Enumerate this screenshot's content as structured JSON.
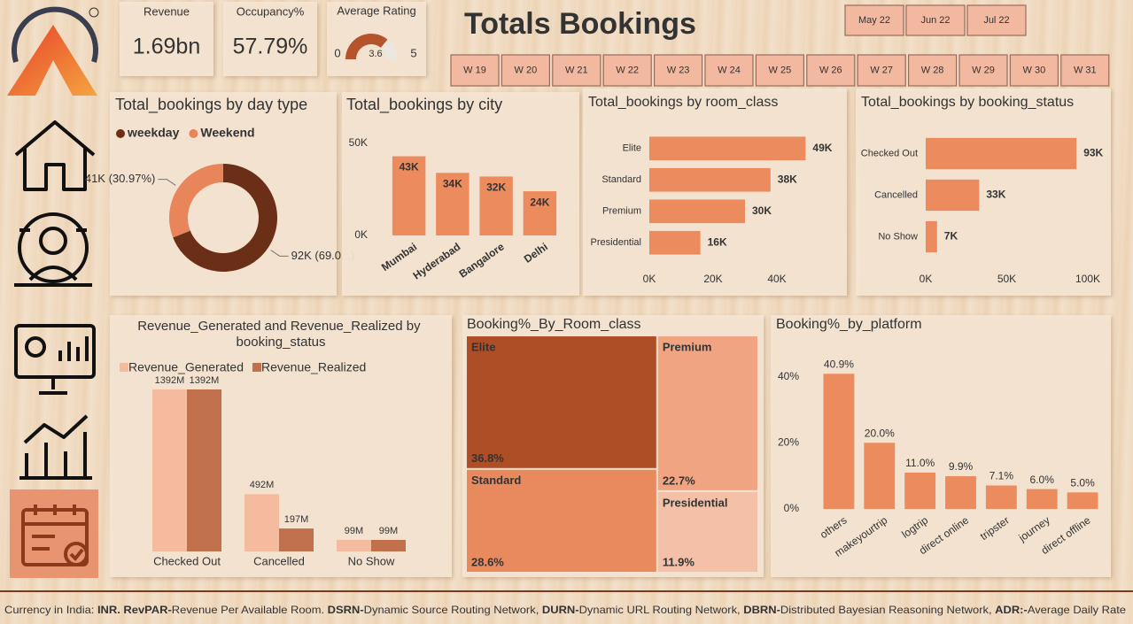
{
  "header": {
    "title": "Totals Bookings"
  },
  "kpis": [
    {
      "label": "Revenue",
      "value": "1.69bn"
    },
    {
      "label": "Occupancy%",
      "value": "57.79%"
    }
  ],
  "gauge": {
    "title": "Average Rating",
    "value": 3.6,
    "min": 0,
    "max": 5,
    "color": "#b5532a"
  },
  "months": [
    "May 22",
    "Jun 22",
    "Jul 22"
  ],
  "weeks": [
    "W 19",
    "W 20",
    "W 21",
    "W 22",
    "W 23",
    "W 24",
    "W 25",
    "W 26",
    "W 27",
    "W 28",
    "W 29",
    "W 30",
    "W 31"
  ],
  "chart_data": [
    {
      "type": "donut",
      "title": "Total_bookings by day type",
      "categories": [
        "weekday",
        "Weekend"
      ],
      "values": [
        91.83,
        41.2
      ],
      "value_labels": [
        "92K (69.0...)",
        "41K (30.97%)"
      ],
      "colors": [
        "#6b2e17",
        "#e8855a"
      ]
    },
    {
      "type": "bar",
      "title": "Total_bookings by city",
      "categories": [
        "Mumbai",
        "Hyderabad",
        "Bangalore",
        "Delhi"
      ],
      "values": [
        43000,
        34000,
        32000,
        24000
      ],
      "value_labels": [
        "43K",
        "34K",
        "32K",
        "24K"
      ],
      "color": "#ec8b5e",
      "ylim": [
        0,
        50000
      ],
      "yticks": [
        {
          "value": 0,
          "label": "0K"
        },
        {
          "value": 50000,
          "label": "50K"
        }
      ]
    },
    {
      "type": "barh",
      "title": "Total_bookings by room_class",
      "categories": [
        "Elite",
        "Standard",
        "Premium",
        "Presidential"
      ],
      "values": [
        49000,
        38000,
        30000,
        16000
      ],
      "value_labels": [
        "49K",
        "38K",
        "30K",
        "16K"
      ],
      "color": "#ec8b5e",
      "xlim": [
        0,
        50000
      ],
      "xticks": [
        {
          "value": 0,
          "label": "0K"
        },
        {
          "value": 20000,
          "label": "20K"
        },
        {
          "value": 40000,
          "label": "40K"
        }
      ]
    },
    {
      "type": "barh",
      "title": "Total_bookings by booking_status",
      "categories": [
        "Checked Out",
        "Cancelled",
        "No Show"
      ],
      "values": [
        93000,
        33000,
        7000
      ],
      "value_labels": [
        "93K",
        "33K",
        "7K"
      ],
      "color": "#ec8b5e",
      "xlim": [
        0,
        100000
      ],
      "xticks": [
        {
          "value": 0,
          "label": "0K"
        },
        {
          "value": 50000,
          "label": "50K"
        },
        {
          "value": 100000,
          "label": "100K"
        }
      ]
    },
    {
      "type": "grouped_bar",
      "title": "Revenue_Generated and Revenue_Realized by booking_status",
      "categories": [
        "Checked Out",
        "Cancelled",
        "No Show"
      ],
      "series": [
        {
          "name": "Revenue_Generated",
          "color": "#f4bb9f",
          "values": [
            1392,
            492,
            99
          ],
          "value_labels": [
            "1392M",
            "492M",
            "99M"
          ]
        },
        {
          "name": "Revenue_Realized",
          "color": "#c0704a",
          "values": [
            1392,
            197,
            99
          ],
          "value_labels": [
            "1392M",
            "197M",
            "99M"
          ]
        }
      ]
    },
    {
      "type": "treemap",
      "title": "Booking%_By_Room_class",
      "categories": [
        "Elite",
        "Standard",
        "Premium",
        "Presidential"
      ],
      "values": [
        36.8,
        28.6,
        22.7,
        11.9
      ],
      "value_labels": [
        "36.8%",
        "28.6%",
        "22.7%",
        "11.9%"
      ],
      "colors": [
        "#ad4e26",
        "#e98a5e",
        "#f0a482",
        "#f4c1a8"
      ]
    },
    {
      "type": "bar",
      "title": "Booking%_by_platform",
      "categories": [
        "others",
        "makeyourtrip",
        "logtrip",
        "direct online",
        "tripster",
        "journey",
        "direct offline"
      ],
      "values": [
        40.9,
        20.0,
        11.0,
        9.9,
        7.1,
        6.0,
        5.0
      ],
      "value_labels": [
        "40.9%",
        "20.0%",
        "11.0%",
        "9.9%",
        "7.1%",
        "6.0%",
        "5.0%"
      ],
      "color": "#ec8b5e",
      "ylim": [
        0,
        45
      ],
      "yticks": [
        {
          "value": 0,
          "label": "0%"
        },
        {
          "value": 20,
          "label": "20%"
        },
        {
          "value": 40,
          "label": "40%"
        }
      ]
    }
  ],
  "footer": [
    {
      "text": "Currency in India: ",
      "bold": false
    },
    {
      "text": "INR. RevPAR-",
      "bold": true
    },
    {
      "text": "Revenue Per Available Room. ",
      "bold": false
    },
    {
      "text": "DSRN-",
      "bold": true
    },
    {
      "text": "Dynamic Source Routing Network, ",
      "bold": false
    },
    {
      "text": "DURN-",
      "bold": true
    },
    {
      "text": "Dynamic URL Routing Network, ",
      "bold": false
    },
    {
      "text": "DBRN-",
      "bold": true
    },
    {
      "text": "Distributed Bayesian Reasoning Network, ",
      "bold": false
    },
    {
      "text": "ADR:-",
      "bold": true
    },
    {
      "text": "Average Daily Rate",
      "bold": false
    }
  ]
}
